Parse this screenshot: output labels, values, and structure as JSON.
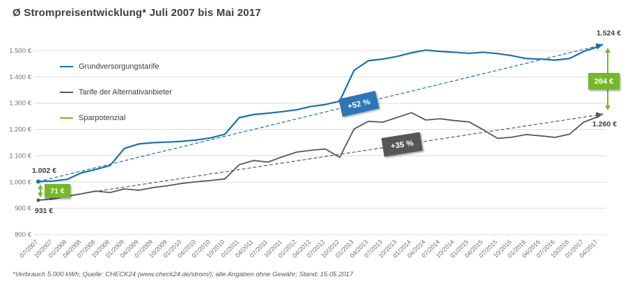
{
  "title": "Ø Strompreisentwicklung* Juli 2007 bis Mai 2017",
  "footnote": "*Verbrauch 5.000 kWh; Quelle: CHECK24 (www.check24.de/strom/); alle Angaben ohne Gewähr; Stand: 15.05.2017",
  "colors": {
    "blue": "#1a6fad",
    "blue_box": "#2e74b5",
    "gray": "#575756",
    "green": "#76b82a",
    "grid": "#dcdcdc",
    "axis_text": "#706f6f",
    "title_text": "#3c3c3b",
    "label_text": "#3c3c3b"
  },
  "legend": {
    "items": [
      {
        "label": "Grundversorgungstarife",
        "color_key": "blue"
      },
      {
        "label": "Tarife der Alternativanbieter",
        "color_key": "gray"
      },
      {
        "label": "Sparpotenzial",
        "color_key": "green"
      }
    ]
  },
  "labels": {
    "start_blue": "1.002 €",
    "start_gray": "931 €",
    "diff_start": "71 €",
    "end_blue": "1.524 €",
    "end_gray": "1.260 €",
    "diff_end": "264 €",
    "pct_blue": "+52 %",
    "pct_gray": "+35 %"
  },
  "chart_data": {
    "type": "line",
    "title": "Ø Strompreisentwicklung* Juli 2007 bis Mai 2017",
    "ylim": [
      800,
      1500
    ],
    "grid": true,
    "legend_position": "top-left",
    "y_ticks": [
      "800 €",
      "900 €",
      "1.000 €",
      "1.100 €",
      "1.200 €",
      "1.300 €",
      "1.400 €",
      "1.500 €"
    ],
    "x_tick_labels": [
      "07/2007",
      "10/2007",
      "01/2008",
      "04/2008",
      "07/2008",
      "10/2008",
      "01/2009",
      "04/2009",
      "07/2009",
      "10/2009",
      "01/2010",
      "04/2010",
      "07/2010",
      "10/2010",
      "01/2011",
      "04/2011",
      "07/2011",
      "10/2011",
      "01/2012",
      "04/2012",
      "07/2012",
      "10/2012",
      "01/2013",
      "04/2013",
      "07/2013",
      "10/2013",
      "01/2014",
      "04/2014",
      "07/2014",
      "10/2014",
      "01/2015",
      "04/2015",
      "07/2015",
      "10/2015",
      "01/2016",
      "04/2016",
      "07/2016",
      "10/2016",
      "01/2017",
      "04/2017"
    ],
    "x_months": [
      0,
      3,
      6,
      9,
      12,
      15,
      18,
      21,
      24,
      27,
      30,
      33,
      36,
      39,
      42,
      45,
      48,
      51,
      54,
      57,
      60,
      63,
      66,
      69,
      72,
      75,
      78,
      81,
      84,
      87,
      90,
      93,
      96,
      99,
      102,
      105,
      108,
      111,
      114,
      117,
      118
    ],
    "series": [
      {
        "name": "Grundversorgungstarife",
        "color_key": "blue",
        "values": [
          1002,
          1004,
          1010,
          1035,
          1048,
          1063,
          1128,
          1145,
          1150,
          1152,
          1155,
          1160,
          1168,
          1182,
          1245,
          1257,
          1262,
          1268,
          1275,
          1288,
          1295,
          1308,
          1425,
          1462,
          1468,
          1478,
          1492,
          1502,
          1497,
          1494,
          1490,
          1494,
          1489,
          1481,
          1470,
          1468,
          1464,
          1470,
          1497,
          1515,
          1524
        ]
      },
      {
        "name": "Tarife der Alternativanbieter",
        "color_key": "gray",
        "values": [
          931,
          935,
          946,
          955,
          966,
          960,
          974,
          969,
          979,
          986,
          995,
          1001,
          1006,
          1012,
          1066,
          1082,
          1076,
          1096,
          1114,
          1121,
          1126,
          1094,
          1202,
          1231,
          1228,
          1246,
          1264,
          1236,
          1241,
          1234,
          1229,
          1199,
          1166,
          1171,
          1181,
          1176,
          1170,
          1182,
          1228,
          1249,
          1260
        ]
      }
    ],
    "trend": {
      "grundversorgungstarife": {
        "from": 1002,
        "to": 1524,
        "change": "+52 %"
      },
      "alternativanbieter": {
        "from": 931,
        "to": 1260,
        "change": "+35 %"
      }
    },
    "sparpotenzial": {
      "start": "71 €",
      "end": "264 €"
    }
  }
}
